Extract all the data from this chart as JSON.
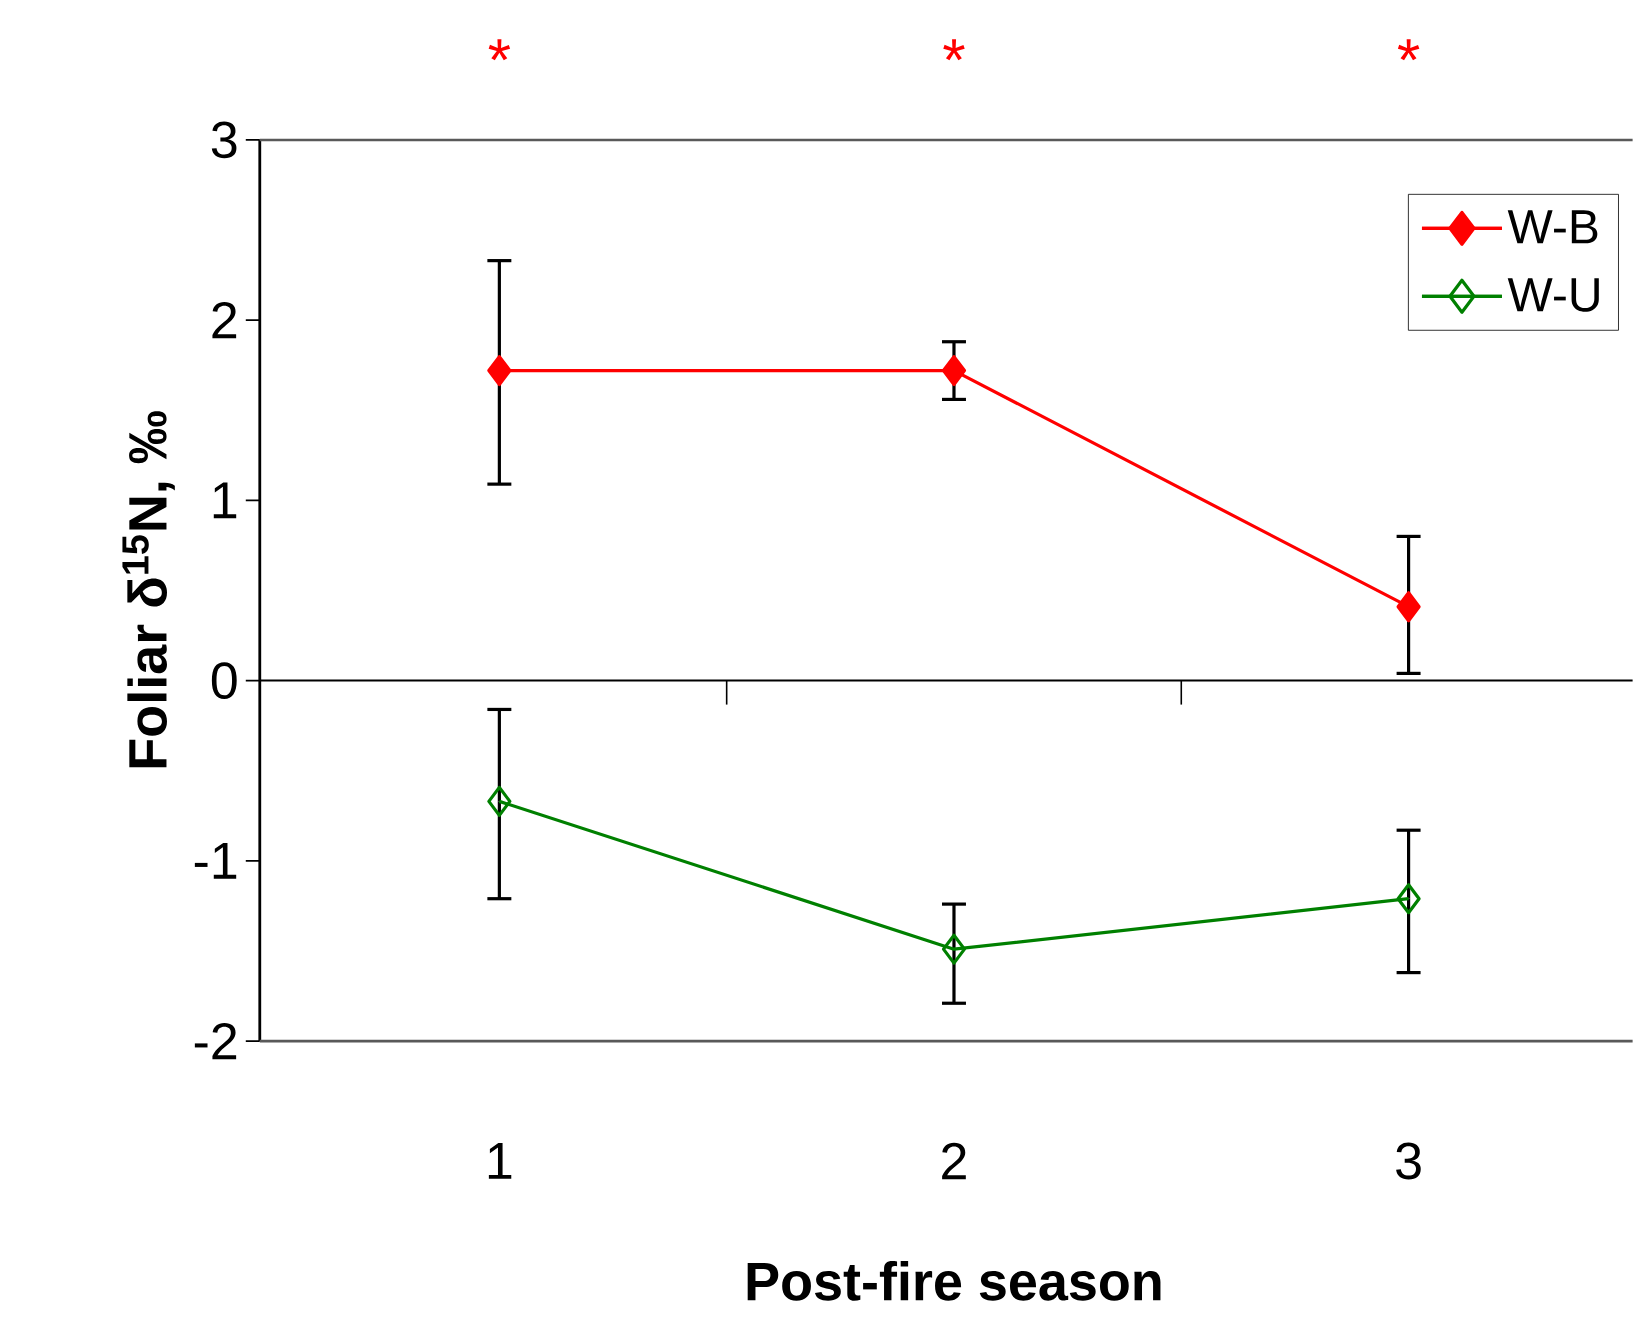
{
  "chart_data": {
    "type": "line",
    "xlabel": "Post-fire season",
    "ylabel": "Foliar δ$^{15}$N, ‰",
    "categories": [
      "1",
      "2",
      "3"
    ],
    "series": [
      {
        "name": "W-B",
        "color": "#ff0000",
        "values": [
          1.72,
          1.72,
          0.41
        ],
        "errors": [
          [
            1.09,
            2.33
          ],
          [
            1.56,
            1.88
          ],
          [
            0.04,
            0.8
          ]
        ],
        "marker": "diamond"
      },
      {
        "name": "W-U",
        "color": "#008000",
        "values": [
          -0.67,
          -1.49,
          -1.21
        ],
        "errors": [
          [
            -1.21,
            -0.16
          ],
          [
            -1.79,
            -1.24
          ],
          [
            -1.62,
            -0.83
          ]
        ],
        "marker": "diamond open"
      }
    ],
    "annotations": [
      "*",
      "*",
      "*"
    ],
    "ylim": [
      -2,
      3
    ],
    "yticks": [
      -2,
      -1,
      0,
      1,
      2,
      3
    ],
    "legend": "top right",
    "line_style": "solid"
  }
}
